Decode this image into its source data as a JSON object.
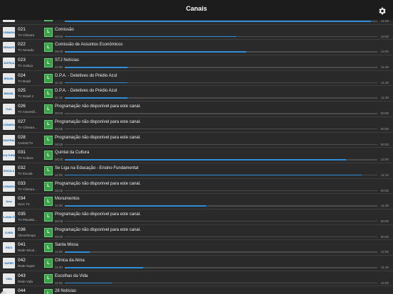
{
  "header": {
    "title": "Canais"
  },
  "channels": [
    {
      "num": "",
      "name": "",
      "logo": "",
      "program": "",
      "start": "",
      "end": "11:00",
      "progress": 0.98
    },
    {
      "num": "021",
      "name": "TV Câmara",
      "logo": "CÂMARA",
      "program": "Comissão",
      "start": "09:00",
      "end": "13:00",
      "progress": 0.55
    },
    {
      "num": "022",
      "name": "TV Senado",
      "logo": "SENADO",
      "program": "Comissão de Assuntos Econômicos",
      "start": "08:45",
      "end": "13:00",
      "progress": 0.58
    },
    {
      "num": "023",
      "name": "TV Justiça",
      "logo": "JUSTIÇA",
      "program": "STJ Notícias",
      "start": "11:00",
      "end": "11:30",
      "progress": 0.2
    },
    {
      "num": "024",
      "name": "TV Brasil",
      "logo": "BRASIL",
      "program": "D.P.A. - Detetives do Prédio Azul",
      "start": "11:15",
      "end": "11:30",
      "progress": 0.2
    },
    {
      "num": "025",
      "name": "TV Brasil 2",
      "logo": "BRASIL",
      "program": "D.P.A. - Detetives do Prédio Azul",
      "start": "11:15",
      "end": "11:30",
      "progress": 0.2
    },
    {
      "num": "026",
      "name": "TV Assembl...",
      "logo": "TvAL",
      "program": "Programação não disponível para este canal.",
      "start": "00:00",
      "end": "00:00",
      "progress": 0
    },
    {
      "num": "027",
      "name": "TV Câmara...",
      "logo": "CÂMARA",
      "program": "Programação não disponível para este canal.",
      "start": "00:00",
      "end": "00:00",
      "progress": 0
    },
    {
      "num": "028",
      "name": "Central TV",
      "logo": "CENTRAL",
      "program": "Programação não disponível para este canal.",
      "start": "00:00",
      "end": "00:00",
      "progress": 0
    },
    {
      "num": "031",
      "name": "TV Cultura",
      "logo": "CULTURA",
      "program": "Quintal da Cultura",
      "start": "08:00",
      "end": "12:00",
      "progress": 0.9
    },
    {
      "num": "032",
      "name": "TV Escola",
      "logo": "ESCOLA",
      "program": "Se Liga na Educação - Ensino Fundamental",
      "start": "11:00",
      "end": "11:22",
      "progress": 0.95
    },
    {
      "num": "033",
      "name": "TV Câmara...",
      "logo": "CÂMARA",
      "program": "Programação não disponível para este canal.",
      "start": "00:00",
      "end": "00:00",
      "progress": 0
    },
    {
      "num": "034",
      "name": "Sesc TV",
      "logo": "Sesc",
      "program": "Monumentos",
      "start": "11:00",
      "end": "11:30",
      "progress": 0.45
    },
    {
      "num": "035",
      "name": "TV Planalto...",
      "logo": "PLANALTO",
      "program": "Programação não disponível para este canal.",
      "start": "00:00",
      "end": "00:00",
      "progress": 0
    },
    {
      "num": "036",
      "name": "ClimaTempo",
      "logo": "CLIMA",
      "program": "Programação não disponível para este canal.",
      "start": "00:00",
      "end": "00:00",
      "progress": 0
    },
    {
      "num": "041",
      "name": "Rede Sécul...",
      "logo": "RS21",
      "program": "Santa Missa",
      "start": "11:00",
      "end": "12:00",
      "progress": 0.08
    },
    {
      "num": "042",
      "name": "Rede Super",
      "logo": "SUPER",
      "program": "Clínica da Alma",
      "start": "11:00",
      "end": "11:45",
      "progress": 0.25
    },
    {
      "num": "043",
      "name": "Rede Vida",
      "logo": "VIDA",
      "program": "Escolhas da Vida",
      "start": "11:00",
      "end": "12:00",
      "progress": 0.15
    },
    {
      "num": "044",
      "name": "",
      "logo": "",
      "program": "28 Notícias",
      "start": "",
      "end": "",
      "progress": 0
    }
  ],
  "colors": {
    "live_badge": "#3ba149",
    "progress": "#2e8ed8",
    "header": "#1c1c1c"
  },
  "icons": {
    "settings": "gear-icon",
    "live": "L"
  }
}
